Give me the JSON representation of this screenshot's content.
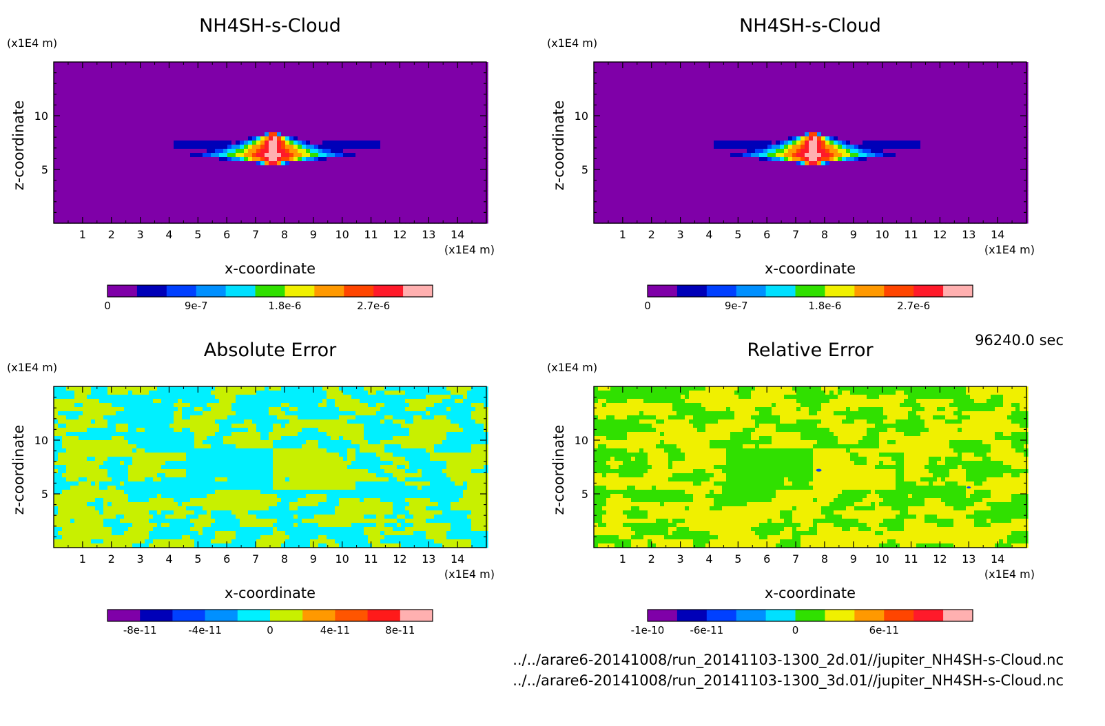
{
  "time_label": "96240.0 sec",
  "files": [
    "../../arare6-20141008/run_20141103-1300_2d.01//jupiter_NH4SH-s-Cloud.nc",
    "../../arare6-20141008/run_20141103-1300_3d.01//jupiter_NH4SH-s-Cloud.nc"
  ],
  "chart_data": [
    {
      "type": "heatmap",
      "title": "NH4SH-s-Cloud",
      "xlabel": "x-coordinate",
      "ylabel": "z-coordinate",
      "x_unit": "(x1E4 m)",
      "y_unit": "(x1E4 m)",
      "xlim": [
        0,
        15
      ],
      "ylim": [
        0,
        15
      ],
      "x_ticks": [
        "1",
        "2",
        "3",
        "4",
        "5",
        "6",
        "7",
        "8",
        "9",
        "10",
        "11",
        "12",
        "13",
        "14"
      ],
      "y_ticks": [
        "5",
        "10"
      ],
      "field": "cloud",
      "colorbar": {
        "colors": [
          "#7f00a8",
          "#0000b8",
          "#0040ff",
          "#0090ff",
          "#00e0ff",
          "#30e000",
          "#f0f000",
          "#ff9900",
          "#ff4500",
          "#ff1a2a",
          "#ffb0b0"
        ],
        "tick_labels": [
          "0",
          "9e-7",
          "1.8e-6",
          "2.7e-6"
        ],
        "tick_positions": [
          0,
          3,
          6,
          9
        ]
      }
    },
    {
      "type": "heatmap",
      "title": "NH4SH-s-Cloud",
      "xlabel": "x-coordinate",
      "ylabel": "z-coordinate",
      "x_unit": "(x1E4 m)",
      "y_unit": "(x1E4 m)",
      "xlim": [
        0,
        15
      ],
      "ylim": [
        0,
        15
      ],
      "x_ticks": [
        "1",
        "2",
        "3",
        "4",
        "5",
        "6",
        "7",
        "8",
        "9",
        "10",
        "11",
        "12",
        "13",
        "14"
      ],
      "y_ticks": [
        "5",
        "10"
      ],
      "field": "cloud",
      "colorbar": {
        "colors": [
          "#7f00a8",
          "#0000b8",
          "#0040ff",
          "#0090ff",
          "#00e0ff",
          "#30e000",
          "#f0f000",
          "#ff9900",
          "#ff4500",
          "#ff1a2a",
          "#ffb0b0"
        ],
        "tick_labels": [
          "0",
          "9e-7",
          "1.8e-6",
          "2.7e-6"
        ],
        "tick_positions": [
          0,
          3,
          6,
          9
        ]
      }
    },
    {
      "type": "heatmap",
      "title": "Absolute Error",
      "xlabel": "x-coordinate",
      "ylabel": "z-coordinate",
      "x_unit": "(x1E4 m)",
      "y_unit": "(x1E4 m)",
      "xlim": [
        0,
        15
      ],
      "ylim": [
        0,
        15
      ],
      "x_ticks": [
        "1",
        "2",
        "3",
        "4",
        "5",
        "6",
        "7",
        "8",
        "9",
        "10",
        "11",
        "12",
        "13",
        "14"
      ],
      "y_ticks": [
        "5",
        "10"
      ],
      "field": "abs_error",
      "colorbar": {
        "colors": [
          "#7f00a8",
          "#0000b8",
          "#0040ff",
          "#0090ff",
          "#00f0ff",
          "#c8f000",
          "#ff9900",
          "#ff5500",
          "#ff1a1a",
          "#ffb0b0"
        ],
        "tick_labels": [
          "-8e-11",
          "-4e-11",
          "0",
          "4e-11",
          "8e-11"
        ],
        "tick_positions": [
          1,
          3,
          5,
          7,
          9
        ]
      }
    },
    {
      "type": "heatmap",
      "title": "Relative Error",
      "xlabel": "x-coordinate",
      "ylabel": "z-coordinate",
      "x_unit": "(x1E4 m)",
      "y_unit": "(x1E4 m)",
      "xlim": [
        0,
        15
      ],
      "ylim": [
        0,
        15
      ],
      "x_ticks": [
        "1",
        "2",
        "3",
        "4",
        "5",
        "6",
        "7",
        "8",
        "9",
        "10",
        "11",
        "12",
        "13",
        "14"
      ],
      "y_ticks": [
        "5",
        "10"
      ],
      "field": "rel_error",
      "colorbar": {
        "colors": [
          "#7f00a8",
          "#0000b8",
          "#0040ff",
          "#0090ff",
          "#00e0ff",
          "#30e000",
          "#f0f000",
          "#ff9900",
          "#ff4500",
          "#ff1a2a",
          "#ffb0b0"
        ],
        "tick_labels": [
          "-1e-10",
          "-6e-11",
          "0",
          "6e-11"
        ],
        "tick_positions": [
          0,
          2,
          5,
          8
        ]
      }
    }
  ]
}
